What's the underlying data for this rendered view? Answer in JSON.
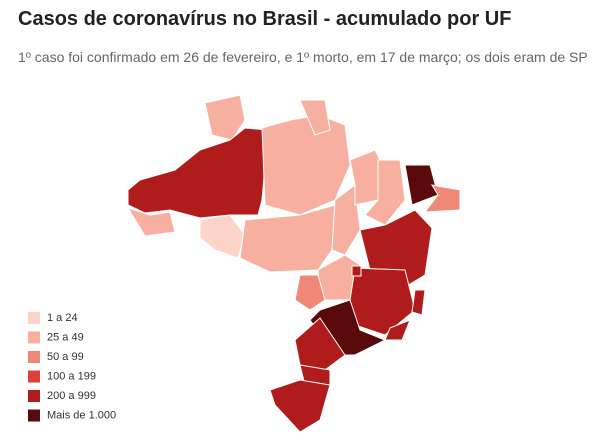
{
  "title": "Casos de coronavírus no Brasil - acumulado por UF",
  "subtitle": "1º caso foi confirmado em 26 de fevereiro, e 1º morto, em 17 de março; os dois eram de SP",
  "legend": [
    {
      "label": "1 a 24",
      "color": "#fcd4c8"
    },
    {
      "label": "25 a 49",
      "color": "#f7b0a0"
    },
    {
      "label": "50 a 99",
      "color": "#f08878"
    },
    {
      "label": "100 a 199",
      "color": "#d9443a"
    },
    {
      "label": "200 a 999",
      "color": "#b01c1c"
    },
    {
      "label": "Mais de 1.000",
      "color": "#5a0a0a"
    }
  ]
}
